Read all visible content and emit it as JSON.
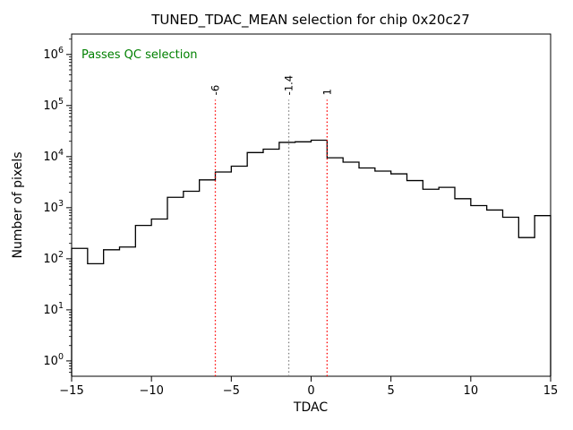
{
  "chart_data": {
    "type": "bar",
    "subtype": "step-histogram",
    "title": "TUNED_TDAC_MEAN selection for chip 0x20c27",
    "xlabel": "TDAC",
    "ylabel": "Number of pixels",
    "annotation": {
      "text": "Passes QC selection",
      "color": "#008000"
    },
    "xlim": [
      -15,
      15
    ],
    "ylog_lim": [
      -0.3,
      6.4
    ],
    "xticks": [
      -15,
      -10,
      -5,
      0,
      5,
      10,
      15
    ],
    "xtick_labels": [
      "−15",
      "−10",
      "−5",
      "0",
      "5",
      "10",
      "15"
    ],
    "ytick_exponents": [
      0,
      1,
      2,
      3,
      4,
      5,
      6
    ],
    "line_color": "#000000",
    "bin_edges": [
      -15,
      -14,
      -13,
      -12,
      -11,
      -10,
      -9,
      -8,
      -7,
      -6,
      -5,
      -4,
      -3,
      -2,
      -1,
      0,
      1,
      2,
      3,
      4,
      5,
      6,
      7,
      8,
      9,
      10,
      11,
      12,
      13,
      14,
      15
    ],
    "counts": [
      160,
      80,
      150,
      170,
      450,
      600,
      1600,
      2100,
      3500,
      5000,
      6500,
      12000,
      14000,
      19000,
      19500,
      21000,
      9500,
      7800,
      6000,
      5200,
      4600,
      3400,
      2300,
      2500,
      1500,
      1100,
      900,
      650,
      260,
      700
    ],
    "vlines": [
      {
        "x": -6,
        "label": "-6",
        "color": "#ff0000"
      },
      {
        "x": -1.4,
        "label": "-1.4",
        "color": "#808080"
      },
      {
        "x": 1,
        "label": "1",
        "color": "#ff0000"
      }
    ],
    "vline_top": 130000,
    "legend": "none",
    "grid": false
  }
}
